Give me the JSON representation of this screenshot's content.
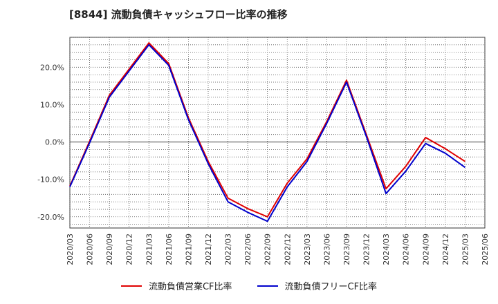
{
  "chart_data": {
    "type": "line",
    "title": "[8844]  流動負債キャッシュフロー比率の推移",
    "xlabel": "",
    "ylabel": "",
    "x": [
      "2020/03",
      "2020/06",
      "2020/09",
      "2020/12",
      "2021/03",
      "2021/06",
      "2021/09",
      "2021/12",
      "2022/03",
      "2022/06",
      "2022/09",
      "2022/12",
      "2023/03",
      "2023/06",
      "2023/09",
      "2023/12",
      "2024/03",
      "2024/06",
      "2024/09",
      "2024/12",
      "2025/03",
      "2025/06"
    ],
    "x_tick_labels": [
      "2020/03",
      "2020/06",
      "2020/09",
      "2020/12",
      "2021/03",
      "2021/06",
      "2021/09",
      "2021/12",
      "2022/03",
      "2022/06",
      "2022/09",
      "2022/12",
      "2023/03",
      "2023/06",
      "2023/09",
      "2023/12",
      "2024/03",
      "2024/06",
      "2024/09",
      "2024/12",
      "2025/03",
      "2025/06"
    ],
    "y_ticks": [
      20,
      10,
      0,
      -10,
      -20
    ],
    "y_tick_labels": [
      "20.0%",
      "10.0%",
      "0.0%",
      "-10.0%",
      "-20.0%"
    ],
    "ylim": [
      -23,
      28
    ],
    "grid": true,
    "legend_position": "bottom",
    "series": [
      {
        "name": "流動負債営業CF比率",
        "color": "#e00000",
        "values": [
          -11.8,
          0.2,
          12.5,
          19.5,
          26.5,
          21.0,
          6.5,
          -5.2,
          -15.0,
          -17.8,
          -20.0,
          -11.0,
          -4.5,
          5.5,
          16.5,
          2.0,
          -12.5,
          -6.5,
          1.2,
          -1.8,
          -5.2,
          null
        ]
      },
      {
        "name": "流動負債フリーCF比率",
        "color": "#0000cc",
        "values": [
          -12.0,
          -0.2,
          12.0,
          19.0,
          26.0,
          20.5,
          6.0,
          -5.8,
          -16.0,
          -18.8,
          -21.2,
          -12.0,
          -5.2,
          5.0,
          16.0,
          1.5,
          -13.8,
          -7.8,
          -0.4,
          -3.0,
          -6.8,
          null
        ]
      }
    ]
  }
}
